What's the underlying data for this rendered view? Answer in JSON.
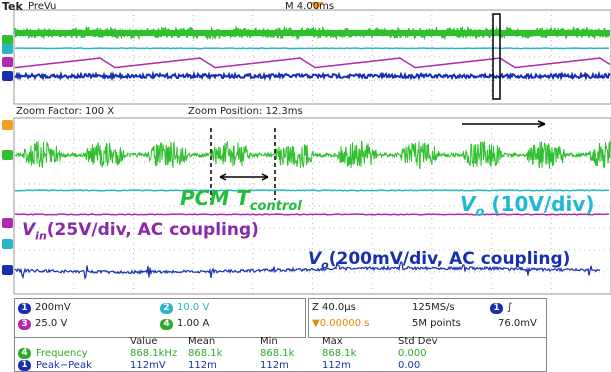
{
  "header": {
    "brand": "Tek",
    "mode": "PreVu",
    "timebase": "M 4.00ms"
  },
  "zoom": {
    "factor": "Zoom Factor: 100 X",
    "position": "Zoom Position: 12.3ms"
  },
  "annotations": {
    "pcm": {
      "main": "PCM T",
      "sub": "control"
    },
    "vo_dc": {
      "main": "V",
      "sub": "o",
      "rest": " (10V/div)"
    },
    "vin": {
      "main": "V",
      "sub": "in",
      "rest": "(25V/div, AC coupling)"
    },
    "vo_ac": {
      "main": "V",
      "sub": "o",
      "rest": "(200mV/div, AC coupling)"
    }
  },
  "channels": [
    {
      "num": "1",
      "scale": "200mV"
    },
    {
      "num": "2",
      "scale": "10.0 V"
    },
    {
      "num": "3",
      "scale": "25.0 V"
    },
    {
      "num": "4",
      "scale": "1.00 A"
    }
  ],
  "acquisition": {
    "zoom": "Z 40.0µs",
    "rate": "125MS/s",
    "trigger": "0.00000 s",
    "points": "5M points",
    "trig_channel": "1",
    "level": "76.0mV"
  },
  "measurements": {
    "headers": [
      "Value",
      "Mean",
      "Min",
      "Max",
      "Std Dev"
    ],
    "rows": [
      {
        "channel": "4",
        "name": "Frequency",
        "cells": [
          "868.1kHz",
          "868.1k",
          "868.1k",
          "868.1k",
          "0.000"
        ]
      },
      {
        "channel": "1",
        "name": "Peak−Peak",
        "cells": [
          "112mV",
          "112m",
          "112m",
          "112m",
          "0.00"
        ]
      }
    ]
  }
}
